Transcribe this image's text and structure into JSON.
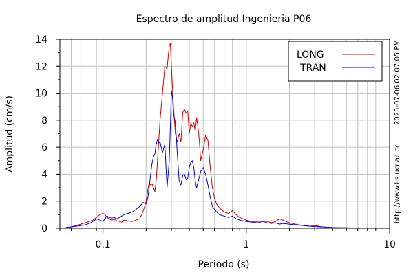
{
  "chart_data": {
    "type": "line",
    "title": "Espectro de amplitud Ingenieria P06",
    "xlabel": "Periodo (s)",
    "ylabel": "Amplitud (cm/s)",
    "x_scale": "log",
    "xlim": [
      0.05,
      10
    ],
    "ylim": [
      0,
      14
    ],
    "x_ticks": [
      0.1,
      1,
      10
    ],
    "x_tick_labels": [
      "0.1",
      "1",
      "10"
    ],
    "y_ticks": [
      0,
      2,
      4,
      6,
      8,
      10,
      12,
      14
    ],
    "grid": true,
    "legend_position": "top-right",
    "timestamp_note": "2025-07-06 02:07:05 PM",
    "url_note": "http://www.lis.ucr.ac.cr",
    "series": [
      {
        "name": "LONG",
        "color": "#cc0000",
        "x": [
          0.055,
          0.06,
          0.065,
          0.07,
          0.075,
          0.08,
          0.085,
          0.09,
          0.095,
          0.1,
          0.103,
          0.107,
          0.11,
          0.115,
          0.12,
          0.125,
          0.13,
          0.135,
          0.14,
          0.15,
          0.16,
          0.17,
          0.18,
          0.19,
          0.2,
          0.205,
          0.21,
          0.215,
          0.22,
          0.225,
          0.23,
          0.235,
          0.24,
          0.245,
          0.25,
          0.26,
          0.27,
          0.28,
          0.29,
          0.295,
          0.3,
          0.305,
          0.31,
          0.32,
          0.33,
          0.34,
          0.35,
          0.36,
          0.37,
          0.38,
          0.39,
          0.4,
          0.41,
          0.42,
          0.43,
          0.44,
          0.45,
          0.46,
          0.47,
          0.48,
          0.5,
          0.52,
          0.54,
          0.56,
          0.58,
          0.6,
          0.62,
          0.65,
          0.7,
          0.75,
          0.8,
          0.85,
          0.9,
          0.95,
          1.0,
          1.1,
          1.2,
          1.3,
          1.4,
          1.5,
          1.6,
          1.7,
          1.8,
          2.0,
          2.2,
          2.5,
          2.8,
          3.0,
          3.3,
          3.6,
          4.0,
          5.0,
          6.0,
          8.0,
          10.0
        ],
        "y": [
          0.05,
          0.1,
          0.2,
          0.3,
          0.4,
          0.5,
          0.6,
          0.8,
          1.0,
          1.1,
          1.0,
          0.8,
          0.7,
          0.6,
          0.65,
          0.55,
          0.5,
          0.45,
          0.6,
          0.55,
          0.5,
          0.6,
          0.7,
          1.2,
          2.0,
          2.8,
          3.4,
          3.2,
          3.3,
          3.0,
          2.7,
          3.5,
          5.0,
          6.5,
          8.0,
          10.0,
          12.0,
          11.8,
          13.5,
          13.7,
          12.0,
          10.5,
          9.0,
          7.0,
          6.4,
          7.0,
          6.4,
          8.6,
          8.8,
          8.5,
          8.7,
          7.0,
          7.8,
          7.5,
          7.8,
          7.2,
          8.2,
          7.5,
          6.5,
          5.0,
          5.8,
          6.9,
          6.5,
          4.5,
          3.0,
          2.2,
          1.8,
          1.5,
          1.2,
          1.1,
          1.3,
          1.0,
          0.8,
          0.7,
          0.6,
          0.5,
          0.5,
          0.55,
          0.5,
          0.4,
          0.5,
          0.7,
          0.6,
          0.4,
          0.3,
          0.2,
          0.15,
          0.2,
          0.12,
          0.08,
          0.05,
          0.03,
          0.02,
          0.01,
          0.01
        ]
      },
      {
        "name": "TRAN",
        "color": "#0000cc",
        "x": [
          0.055,
          0.06,
          0.065,
          0.07,
          0.075,
          0.08,
          0.085,
          0.09,
          0.095,
          0.1,
          0.103,
          0.107,
          0.11,
          0.115,
          0.12,
          0.125,
          0.13,
          0.135,
          0.14,
          0.15,
          0.16,
          0.17,
          0.18,
          0.19,
          0.2,
          0.205,
          0.21,
          0.215,
          0.22,
          0.225,
          0.23,
          0.235,
          0.24,
          0.245,
          0.25,
          0.26,
          0.27,
          0.28,
          0.29,
          0.295,
          0.3,
          0.305,
          0.31,
          0.32,
          0.33,
          0.34,
          0.35,
          0.36,
          0.37,
          0.38,
          0.39,
          0.4,
          0.41,
          0.42,
          0.43,
          0.44,
          0.45,
          0.46,
          0.47,
          0.48,
          0.5,
          0.52,
          0.54,
          0.56,
          0.58,
          0.6,
          0.62,
          0.65,
          0.7,
          0.75,
          0.8,
          0.85,
          0.9,
          0.95,
          1.0,
          1.1,
          1.2,
          1.3,
          1.4,
          1.5,
          1.6,
          1.7,
          1.8,
          2.0,
          2.2,
          2.5,
          2.8,
          3.0,
          3.3,
          3.6,
          4.0,
          5.0,
          6.0,
          8.0,
          10.0
        ],
        "y": [
          0.05,
          0.1,
          0.15,
          0.2,
          0.25,
          0.35,
          0.5,
          0.7,
          0.6,
          0.5,
          0.7,
          0.9,
          0.8,
          0.75,
          0.8,
          0.7,
          0.8,
          0.9,
          1.0,
          1.1,
          1.2,
          1.4,
          1.6,
          1.9,
          1.8,
          2.2,
          3.0,
          4.0,
          4.8,
          5.3,
          5.5,
          6.2,
          6.6,
          6.3,
          6.4,
          5.6,
          6.2,
          3.0,
          5.0,
          7.5,
          10.2,
          9.8,
          8.5,
          7.8,
          5.5,
          3.5,
          3.2,
          3.9,
          4.0,
          3.6,
          3.7,
          4.5,
          4.9,
          5.0,
          4.5,
          3.5,
          3.0,
          3.4,
          3.8,
          4.2,
          4.5,
          4.0,
          3.2,
          2.3,
          1.6,
          1.4,
          1.2,
          1.0,
          0.9,
          0.8,
          0.9,
          0.7,
          0.6,
          0.55,
          0.5,
          0.45,
          0.4,
          0.5,
          0.4,
          0.35,
          0.4,
          0.3,
          0.35,
          0.3,
          0.25,
          0.2,
          0.15,
          0.12,
          0.1,
          0.08,
          0.05,
          0.03,
          0.02,
          0.01,
          0.01
        ]
      }
    ]
  }
}
